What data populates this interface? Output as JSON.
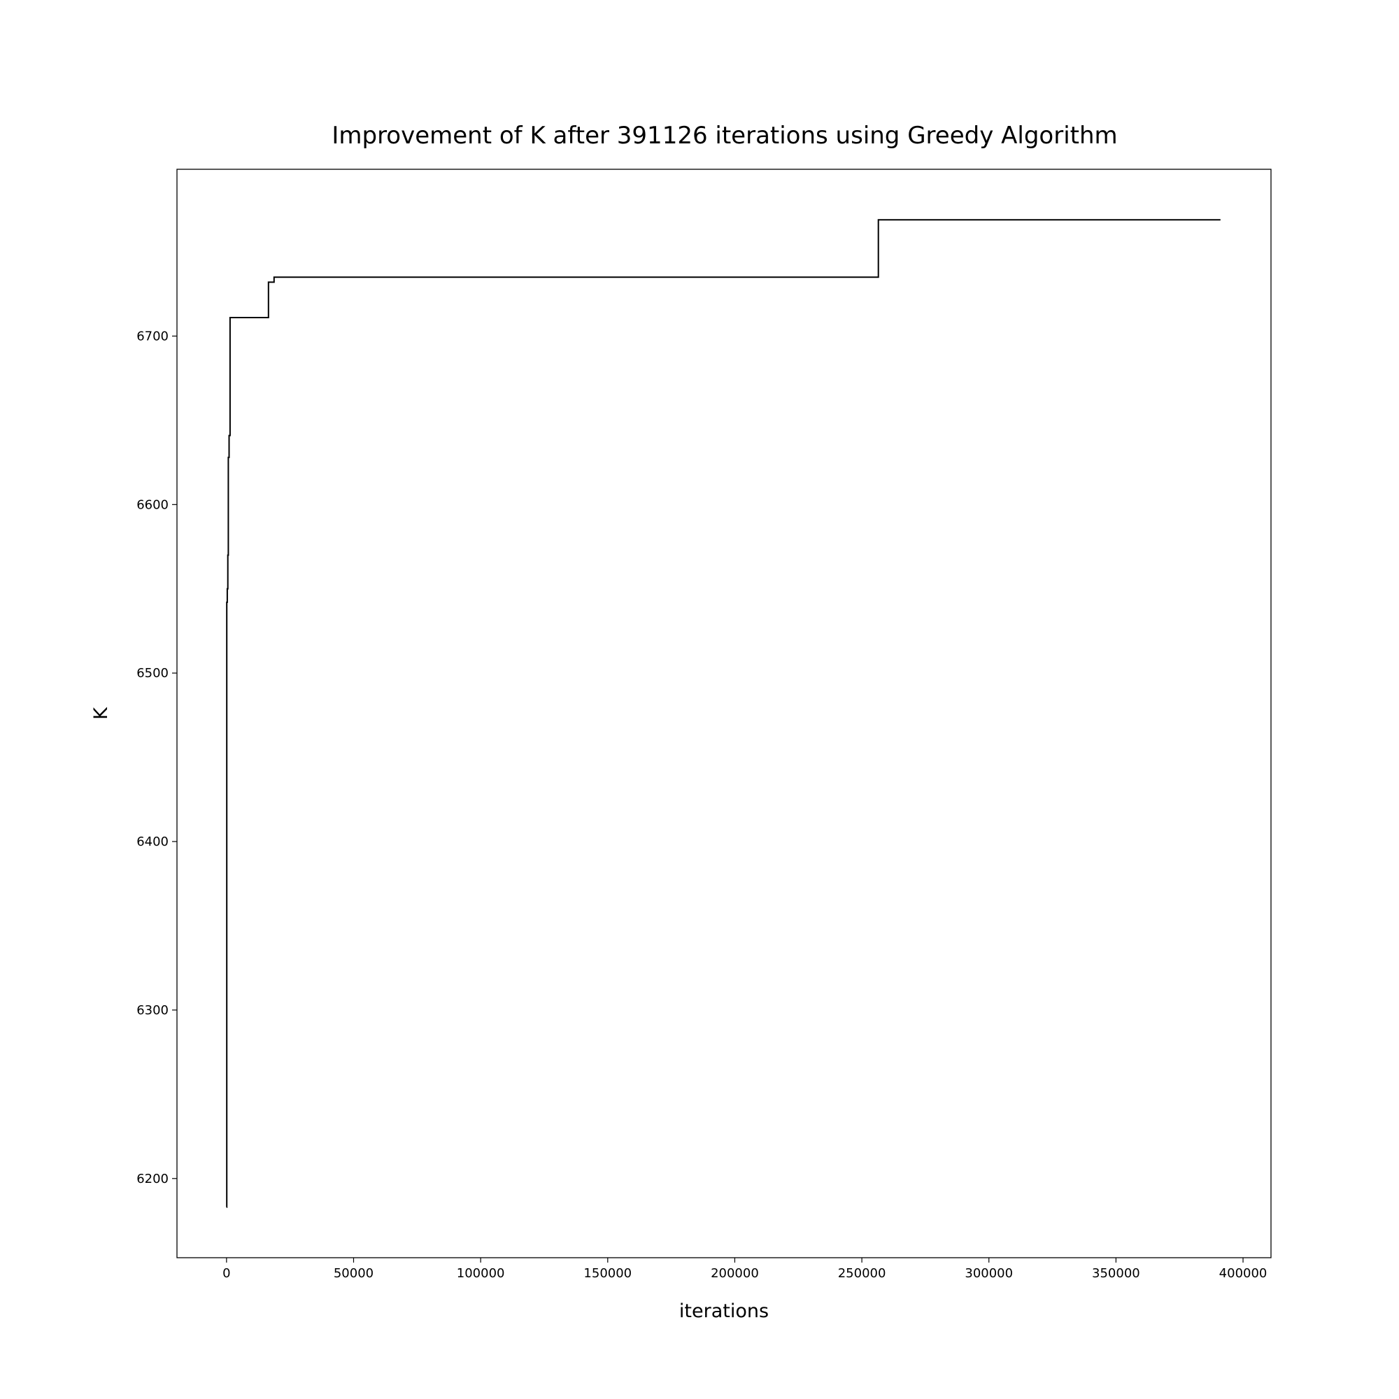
{
  "chart_data": {
    "type": "line",
    "title": "Improvement of K after 391126 iterations using Greedy Algorithm",
    "xlabel": "iterations",
    "ylabel": "K",
    "xlim": [
      -19500,
      411000
    ],
    "ylim": [
      6153,
      6799
    ],
    "xticks": [
      0,
      50000,
      100000,
      150000,
      200000,
      250000,
      300000,
      350000,
      400000
    ],
    "yticks": [
      6200,
      6300,
      6400,
      6500,
      6600,
      6700
    ],
    "grid": false,
    "legend": "none",
    "line_color": "#000000",
    "step": true,
    "series": [
      {
        "x": [
          0,
          100,
          300,
          500,
          700,
          1000,
          1400,
          16500,
          18700,
          256500,
          391126
        ],
        "y": [
          6183,
          6542,
          6550,
          6570,
          6628,
          6641,
          6711,
          6732,
          6735,
          6769,
          6769
        ]
      }
    ]
  }
}
